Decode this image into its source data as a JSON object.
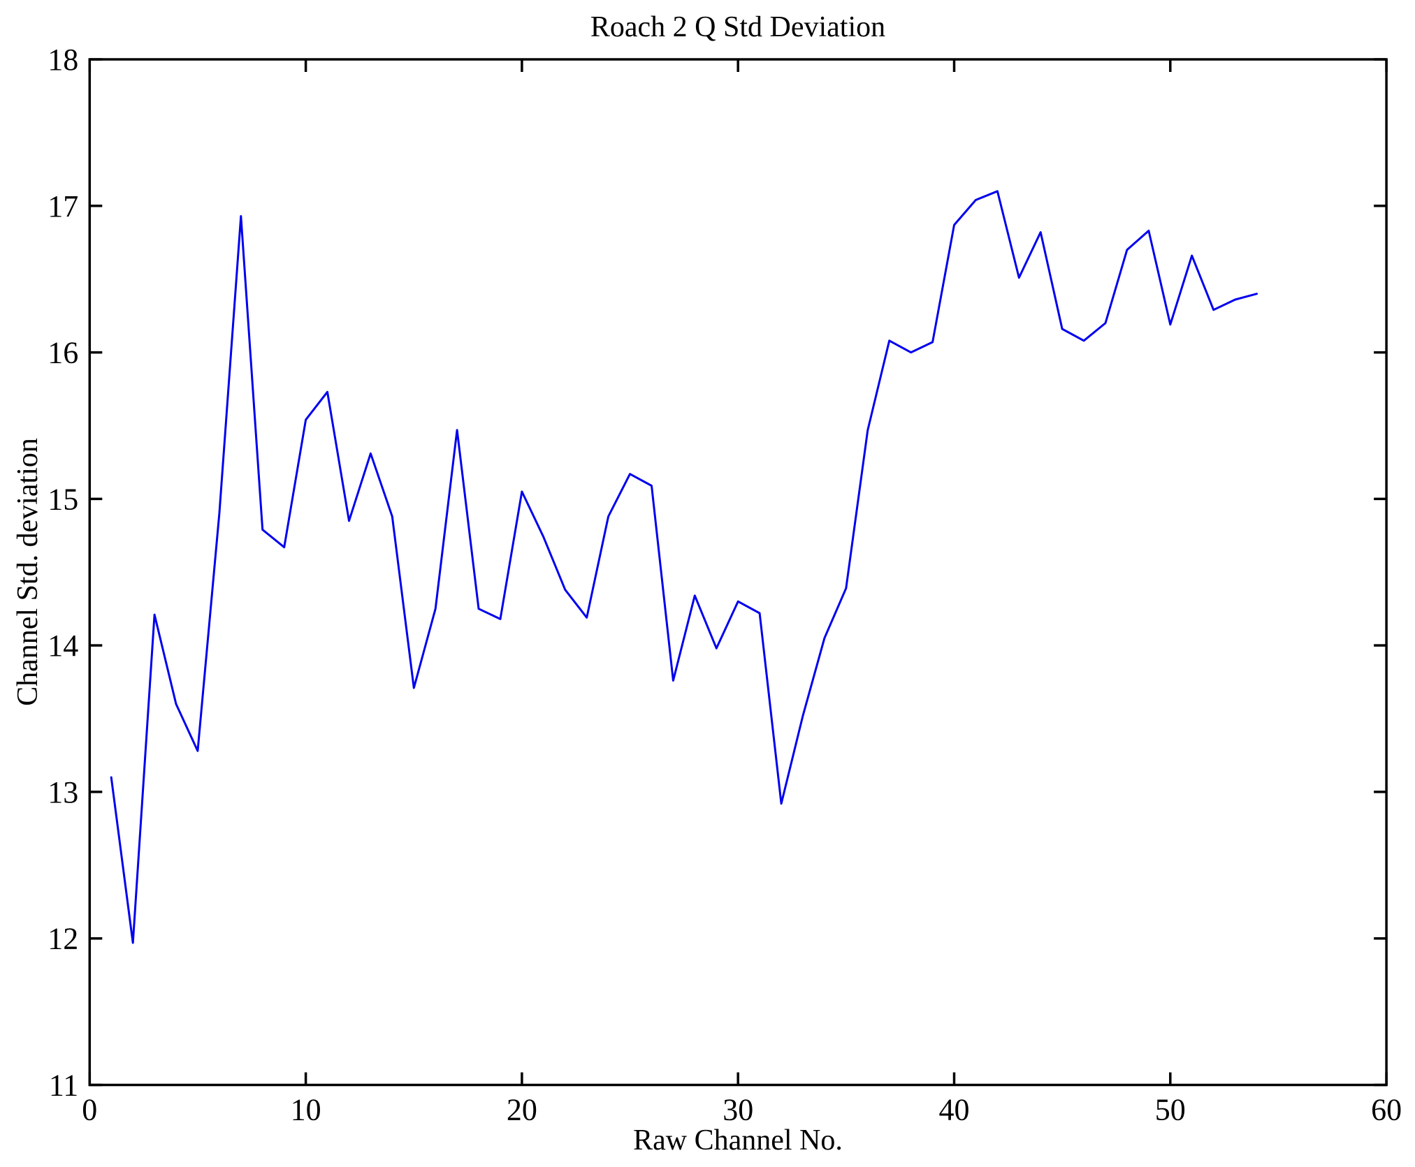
{
  "chart_data": {
    "type": "line",
    "title": "Roach 2 Q Std Deviation",
    "xlabel": "Raw Channel No.",
    "ylabel": "Channel Std. deviation",
    "xlim": [
      0,
      60
    ],
    "ylim": [
      11,
      18
    ],
    "xticks": [
      0,
      10,
      20,
      30,
      40,
      50,
      60
    ],
    "yticks": [
      11,
      12,
      13,
      14,
      15,
      16,
      17,
      18
    ],
    "grid": false,
    "legend": null,
    "background_color": "#FFFFFF",
    "axis_color": "#000000",
    "line_color": "#0000EE",
    "series": [
      {
        "name": "Channel Std. deviation",
        "x": [
          1,
          2,
          3,
          4,
          5,
          6,
          7,
          8,
          9,
          10,
          11,
          12,
          13,
          14,
          15,
          16,
          17,
          18,
          19,
          20,
          21,
          22,
          23,
          24,
          25,
          26,
          27,
          28,
          29,
          30,
          31,
          32,
          33,
          34,
          35,
          36,
          37,
          38,
          39,
          40,
          41,
          42,
          43,
          44,
          45,
          46,
          47,
          48,
          49,
          50,
          51,
          52,
          53,
          54
        ],
        "y": [
          13.1,
          11.97,
          14.21,
          13.6,
          13.28,
          14.9,
          16.93,
          14.79,
          14.67,
          15.54,
          15.73,
          14.85,
          15.31,
          14.88,
          13.71,
          14.25,
          15.47,
          14.25,
          14.18,
          15.05,
          14.74,
          14.38,
          14.19,
          14.88,
          15.17,
          15.09,
          13.76,
          14.34,
          13.98,
          14.3,
          14.22,
          12.92,
          13.52,
          14.05,
          14.39,
          15.47,
          16.08,
          16.0,
          16.07,
          16.87,
          17.04,
          17.1,
          16.51,
          16.82,
          16.16,
          16.08,
          16.2,
          16.7,
          16.83,
          16.19,
          16.66,
          16.29,
          16.36,
          16.4
        ]
      }
    ]
  }
}
